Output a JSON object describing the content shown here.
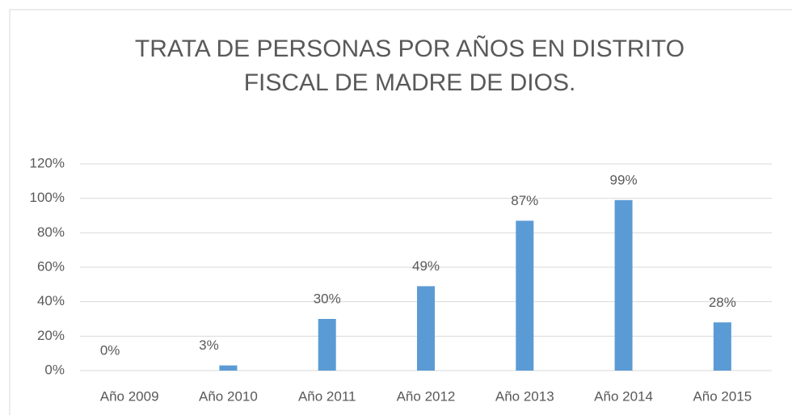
{
  "chart_data": {
    "type": "bar",
    "title": [
      "TRATA DE PERSONAS POR AÑOS EN DISTRITO",
      "FISCAL DE MADRE DE DIOS."
    ],
    "categories": [
      "Año 2009",
      "Año 2010",
      "Año 2011",
      "Año 2012",
      "Año 2013",
      "Año 2014",
      "Año 2015"
    ],
    "values": [
      0,
      3,
      30,
      49,
      87,
      99,
      28
    ],
    "value_labels": [
      "0%",
      "3%",
      "30%",
      "49%",
      "87%",
      "99%",
      "28%"
    ],
    "color": "#5b9bd5",
    "ylim": [
      0,
      120
    ],
    "yticks": [
      {
        "value": 0,
        "label": "0%"
      },
      {
        "value": 20,
        "label": "20%"
      },
      {
        "value": 40,
        "label": "40%"
      },
      {
        "value": 60,
        "label": "60%"
      },
      {
        "value": 80,
        "label": "80%"
      },
      {
        "value": 100,
        "label": "100%"
      },
      {
        "value": 120,
        "label": "120%"
      }
    ],
    "grid": true
  }
}
